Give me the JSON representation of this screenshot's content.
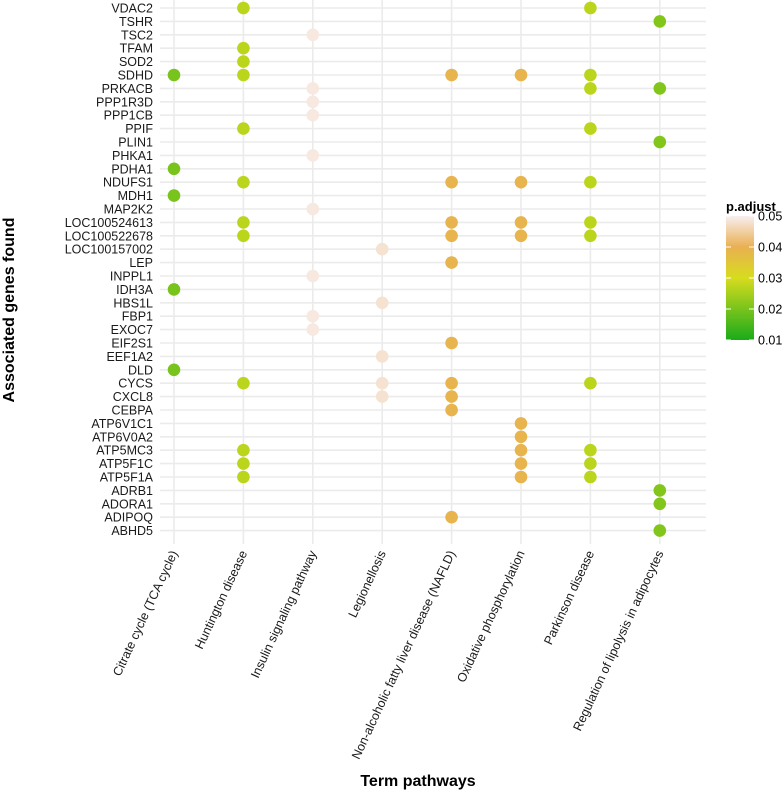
{
  "chart_data": {
    "type": "scatter",
    "title": "",
    "xlabel": "Term pathways",
    "ylabel": "Associated genes found",
    "x_categories": [
      "Citrate cycle (TCA cycle)",
      "Huntington disease",
      "Insulin signaling pathway",
      "Legionellosis",
      "Non-alcoholic fatty liver disease (NAFLD)",
      "Oxidative phosphorylation",
      "Parkinson disease",
      "Regulation of lipolysis in adipocytes"
    ],
    "y_categories": [
      "VDAC2",
      "TSHR",
      "TSC2",
      "TFAM",
      "SOD2",
      "SDHD",
      "PRKACB",
      "PPP1R3D",
      "PPP1CB",
      "PPIF",
      "PLIN1",
      "PHKA1",
      "PDHA1",
      "NDUFS1",
      "MDH1",
      "MAP2K2",
      "LOC100524613",
      "LOC100522678",
      "LOC100157002",
      "LEP",
      "INPPL1",
      "IDH3A",
      "HBS1L",
      "FBP1",
      "EXOC7",
      "EIF2S1",
      "EEF1A2",
      "DLD",
      "CYCS",
      "CXCL8",
      "CEBPA",
      "ATP6V1C1",
      "ATP6V0A2",
      "ATP5MC3",
      "ATP5F1C",
      "ATP5F1A",
      "ADRB1",
      "ADORA1",
      "ADIPOQ",
      "ABHD5"
    ],
    "pathway_padjust": {
      "Citrate cycle (TCA cycle)": 0.02,
      "Huntington disease": 0.027,
      "Insulin signaling pathway": 0.049,
      "Legionellosis": 0.048,
      "Non-alcoholic fatty liver disease (NAFLD)": 0.039,
      "Oxidative phosphorylation": 0.039,
      "Parkinson disease": 0.027,
      "Regulation of lipolysis in adipocytes": 0.021
    },
    "points": [
      {
        "gene": "VDAC2",
        "pathway": "Huntington disease"
      },
      {
        "gene": "VDAC2",
        "pathway": "Parkinson disease"
      },
      {
        "gene": "TSHR",
        "pathway": "Regulation of lipolysis in adipocytes"
      },
      {
        "gene": "TSC2",
        "pathway": "Insulin signaling pathway"
      },
      {
        "gene": "TFAM",
        "pathway": "Huntington disease"
      },
      {
        "gene": "SOD2",
        "pathway": "Huntington disease"
      },
      {
        "gene": "SDHD",
        "pathway": "Citrate cycle (TCA cycle)"
      },
      {
        "gene": "SDHD",
        "pathway": "Huntington disease"
      },
      {
        "gene": "SDHD",
        "pathway": "Non-alcoholic fatty liver disease (NAFLD)"
      },
      {
        "gene": "SDHD",
        "pathway": "Oxidative phosphorylation"
      },
      {
        "gene": "SDHD",
        "pathway": "Parkinson disease"
      },
      {
        "gene": "PRKACB",
        "pathway": "Insulin signaling pathway"
      },
      {
        "gene": "PRKACB",
        "pathway": "Parkinson disease"
      },
      {
        "gene": "PRKACB",
        "pathway": "Regulation of lipolysis in adipocytes"
      },
      {
        "gene": "PPP1R3D",
        "pathway": "Insulin signaling pathway"
      },
      {
        "gene": "PPP1CB",
        "pathway": "Insulin signaling pathway"
      },
      {
        "gene": "PPIF",
        "pathway": "Huntington disease"
      },
      {
        "gene": "PPIF",
        "pathway": "Parkinson disease"
      },
      {
        "gene": "PLIN1",
        "pathway": "Regulation of lipolysis in adipocytes"
      },
      {
        "gene": "PHKA1",
        "pathway": "Insulin signaling pathway"
      },
      {
        "gene": "PDHA1",
        "pathway": "Citrate cycle (TCA cycle)"
      },
      {
        "gene": "NDUFS1",
        "pathway": "Huntington disease"
      },
      {
        "gene": "NDUFS1",
        "pathway": "Non-alcoholic fatty liver disease (NAFLD)"
      },
      {
        "gene": "NDUFS1",
        "pathway": "Oxidative phosphorylation"
      },
      {
        "gene": "NDUFS1",
        "pathway": "Parkinson disease"
      },
      {
        "gene": "MDH1",
        "pathway": "Citrate cycle (TCA cycle)"
      },
      {
        "gene": "MAP2K2",
        "pathway": "Insulin signaling pathway"
      },
      {
        "gene": "LOC100524613",
        "pathway": "Huntington disease"
      },
      {
        "gene": "LOC100524613",
        "pathway": "Non-alcoholic fatty liver disease (NAFLD)"
      },
      {
        "gene": "LOC100524613",
        "pathway": "Oxidative phosphorylation"
      },
      {
        "gene": "LOC100524613",
        "pathway": "Parkinson disease"
      },
      {
        "gene": "LOC100522678",
        "pathway": "Huntington disease"
      },
      {
        "gene": "LOC100522678",
        "pathway": "Non-alcoholic fatty liver disease (NAFLD)"
      },
      {
        "gene": "LOC100522678",
        "pathway": "Oxidative phosphorylation"
      },
      {
        "gene": "LOC100522678",
        "pathway": "Parkinson disease"
      },
      {
        "gene": "LOC100157002",
        "pathway": "Legionellosis"
      },
      {
        "gene": "LEP",
        "pathway": "Non-alcoholic fatty liver disease (NAFLD)"
      },
      {
        "gene": "INPPL1",
        "pathway": "Insulin signaling pathway"
      },
      {
        "gene": "IDH3A",
        "pathway": "Citrate cycle (TCA cycle)"
      },
      {
        "gene": "HBS1L",
        "pathway": "Legionellosis"
      },
      {
        "gene": "FBP1",
        "pathway": "Insulin signaling pathway"
      },
      {
        "gene": "EXOC7",
        "pathway": "Insulin signaling pathway"
      },
      {
        "gene": "EIF2S1",
        "pathway": "Non-alcoholic fatty liver disease (NAFLD)"
      },
      {
        "gene": "EEF1A2",
        "pathway": "Legionellosis"
      },
      {
        "gene": "DLD",
        "pathway": "Citrate cycle (TCA cycle)"
      },
      {
        "gene": "CYCS",
        "pathway": "Huntington disease"
      },
      {
        "gene": "CYCS",
        "pathway": "Legionellosis"
      },
      {
        "gene": "CYCS",
        "pathway": "Non-alcoholic fatty liver disease (NAFLD)"
      },
      {
        "gene": "CYCS",
        "pathway": "Parkinson disease"
      },
      {
        "gene": "CXCL8",
        "pathway": "Legionellosis"
      },
      {
        "gene": "CXCL8",
        "pathway": "Non-alcoholic fatty liver disease (NAFLD)"
      },
      {
        "gene": "CEBPA",
        "pathway": "Non-alcoholic fatty liver disease (NAFLD)"
      },
      {
        "gene": "ATP6V1C1",
        "pathway": "Oxidative phosphorylation"
      },
      {
        "gene": "ATP6V0A2",
        "pathway": "Oxidative phosphorylation"
      },
      {
        "gene": "ATP5MC3",
        "pathway": "Huntington disease"
      },
      {
        "gene": "ATP5MC3",
        "pathway": "Oxidative phosphorylation"
      },
      {
        "gene": "ATP5MC3",
        "pathway": "Parkinson disease"
      },
      {
        "gene": "ATP5F1C",
        "pathway": "Huntington disease"
      },
      {
        "gene": "ATP5F1C",
        "pathway": "Oxidative phosphorylation"
      },
      {
        "gene": "ATP5F1C",
        "pathway": "Parkinson disease"
      },
      {
        "gene": "ATP5F1A",
        "pathway": "Huntington disease"
      },
      {
        "gene": "ATP5F1A",
        "pathway": "Oxidative phosphorylation"
      },
      {
        "gene": "ATP5F1A",
        "pathway": "Parkinson disease"
      },
      {
        "gene": "ADRB1",
        "pathway": "Regulation of lipolysis in adipocytes"
      },
      {
        "gene": "ADORA1",
        "pathway": "Regulation of lipolysis in adipocytes"
      },
      {
        "gene": "ADIPOQ",
        "pathway": "Non-alcoholic fatty liver disease (NAFLD)"
      },
      {
        "gene": "ABHD5",
        "pathway": "Regulation of lipolysis in adipocytes"
      }
    ],
    "legend": {
      "title": "p.adjust",
      "position": "right",
      "range": [
        0.01,
        0.05
      ],
      "ticks": [
        "0.05",
        "0.04",
        "0.03",
        "0.02",
        "0.01"
      ],
      "tick_values": [
        0.05,
        0.04,
        0.03,
        0.02,
        0.01
      ],
      "colors": {
        "0.01": "#1aab1a",
        "0.03": "#d7dc1e",
        "0.04": "#e9b052",
        "0.05": "#f8eef0"
      }
    },
    "grid": true,
    "colors": {
      "grid": "#ebebeb",
      "axis_text": "#1a1a1a",
      "background": "#ffffff"
    }
  }
}
